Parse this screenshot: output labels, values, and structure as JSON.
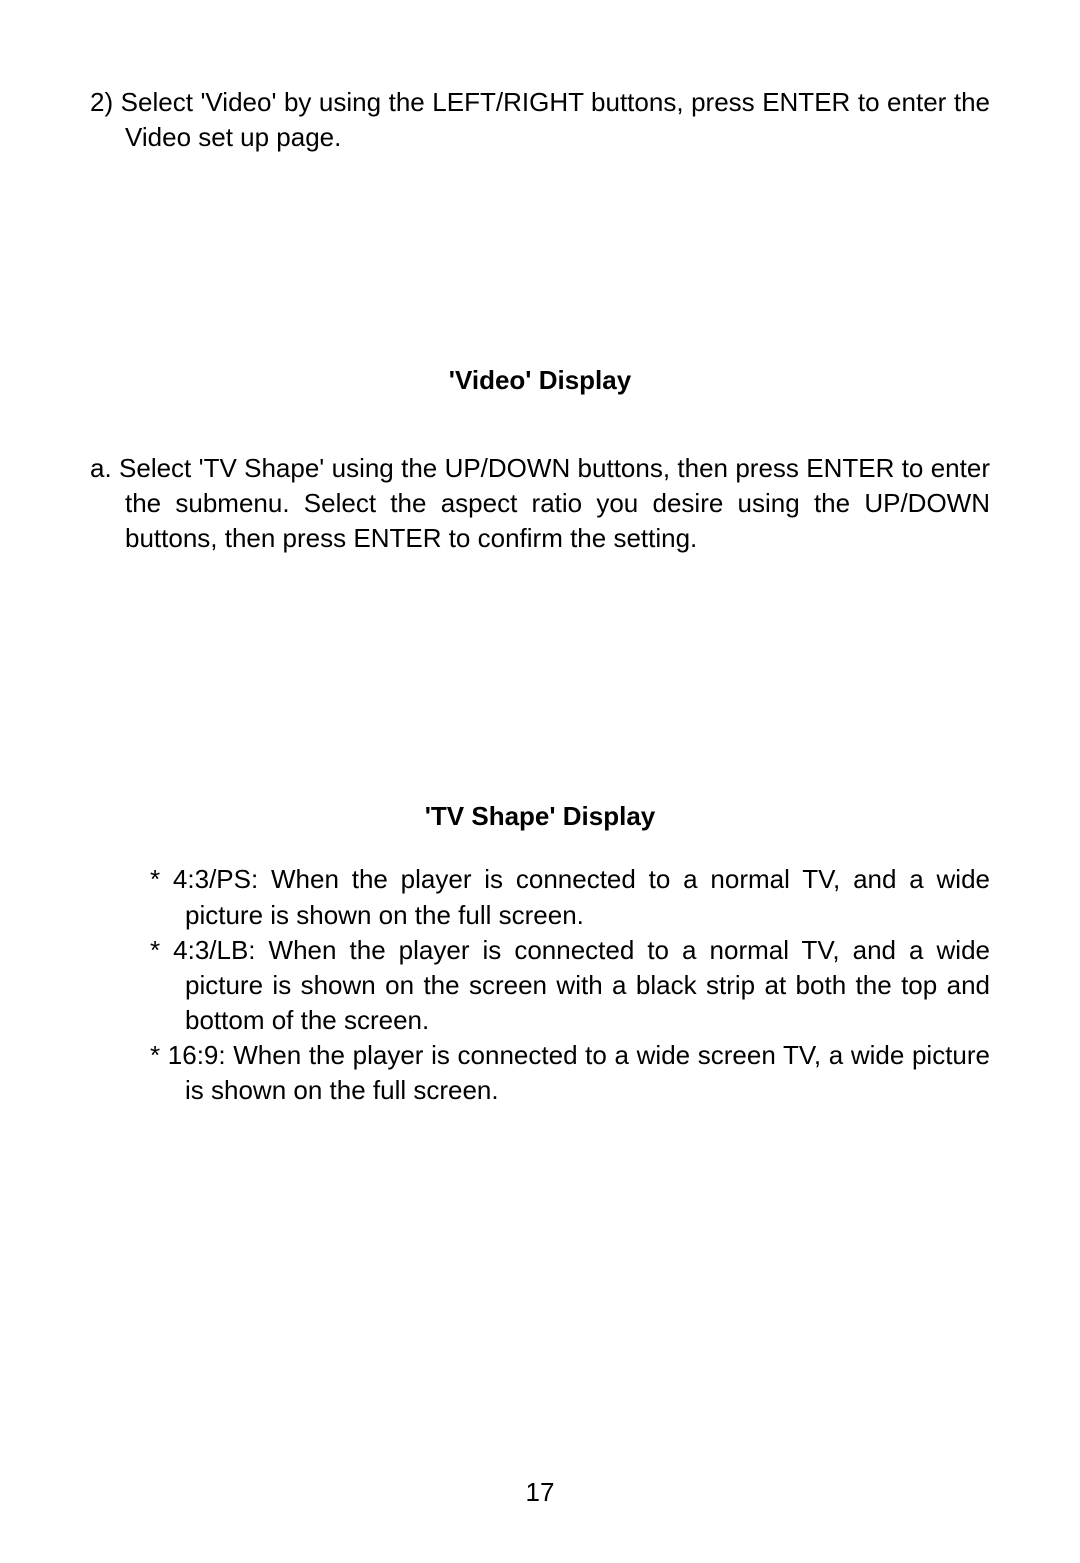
{
  "heading1": "'Video' Display",
  "heading2": "'TV Shape' Display",
  "para1_lead": "2) ",
  "para1_rest": "Select 'Video' by using the LEFT/RIGHT buttons, press ENTER to enter the Video set up page.",
  "para2_lead": "a. ",
  "para2_rest": "Select 'TV Shape' using  the UP/DOWN buttons, then press  ENTER to enter the submenu. Select  the aspect ratio you desire using  the UP/DOWN buttons, then press ENTER to confirm the setting.",
  "bullet1": "* 4:3/PS: When the player is connected to a normal TV, and a wide picture is shown on the full screen.",
  "bullet2": "* 4:3/LB: When the player is connected to a normal TV, and a wide picture is shown on the screen with a black strip at both  the top and bottom of the screen.",
  "bullet3": "* 16:9: When the player is connected to a wide screen TV, a wide picture is shown on the full screen.",
  "page_number": "17"
}
